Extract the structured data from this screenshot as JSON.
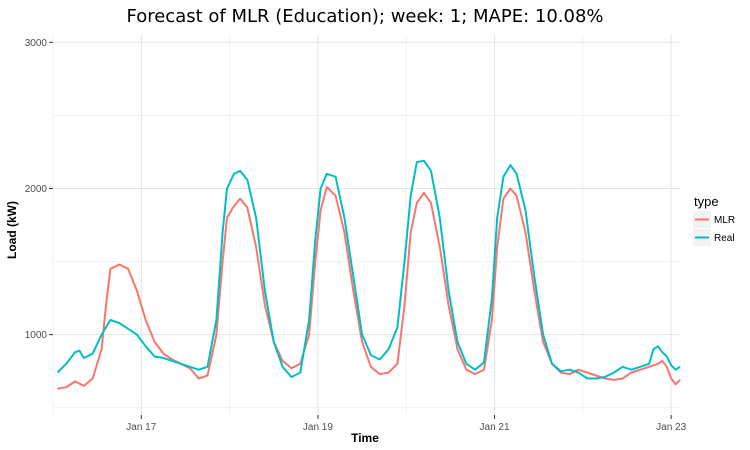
{
  "chart_data": {
    "type": "line",
    "title": "Forecast of MLR (Education); week: 1; MAPE: 10.08%",
    "xlabel": "Time",
    "ylabel": "Load (kW)",
    "x_unit": "days (January)",
    "xlim": [
      16.0,
      23.1
    ],
    "ylim": [
      450,
      3050
    ],
    "x_ticks": [
      {
        "value": 17,
        "label": "Jan 17"
      },
      {
        "value": 19,
        "label": "Jan 19"
      },
      {
        "value": 21,
        "label": "Jan 21"
      },
      {
        "value": 23,
        "label": "Jan 23"
      }
    ],
    "y_ticks": [
      {
        "value": 1000,
        "label": "1000"
      },
      {
        "value": 2000,
        "label": "2000"
      },
      {
        "value": 3000,
        "label": "3000"
      }
    ],
    "grid": true,
    "legend": {
      "title": "type",
      "position": "right"
    },
    "series": [
      {
        "name": "MLR",
        "color": "#F8766D",
        "points": [
          [
            16.05,
            630
          ],
          [
            16.15,
            640
          ],
          [
            16.25,
            680
          ],
          [
            16.35,
            650
          ],
          [
            16.45,
            700
          ],
          [
            16.55,
            900
          ],
          [
            16.6,
            1200
          ],
          [
            16.65,
            1450
          ],
          [
            16.75,
            1480
          ],
          [
            16.85,
            1450
          ],
          [
            16.95,
            1300
          ],
          [
            17.05,
            1100
          ],
          [
            17.15,
            950
          ],
          [
            17.25,
            870
          ],
          [
            17.35,
            830
          ],
          [
            17.45,
            800
          ],
          [
            17.55,
            770
          ],
          [
            17.65,
            700
          ],
          [
            17.75,
            720
          ],
          [
            17.85,
            1000
          ],
          [
            17.92,
            1500
          ],
          [
            17.97,
            1800
          ],
          [
            18.05,
            1880
          ],
          [
            18.12,
            1930
          ],
          [
            18.2,
            1870
          ],
          [
            18.3,
            1600
          ],
          [
            18.4,
            1200
          ],
          [
            18.5,
            950
          ],
          [
            18.6,
            820
          ],
          [
            18.7,
            770
          ],
          [
            18.8,
            800
          ],
          [
            18.9,
            1000
          ],
          [
            18.97,
            1500
          ],
          [
            19.03,
            1850
          ],
          [
            19.1,
            2010
          ],
          [
            19.2,
            1950
          ],
          [
            19.3,
            1700
          ],
          [
            19.4,
            1300
          ],
          [
            19.5,
            950
          ],
          [
            19.6,
            780
          ],
          [
            19.7,
            730
          ],
          [
            19.8,
            740
          ],
          [
            19.9,
            800
          ],
          [
            19.98,
            1200
          ],
          [
            20.05,
            1700
          ],
          [
            20.12,
            1900
          ],
          [
            20.2,
            1970
          ],
          [
            20.28,
            1900
          ],
          [
            20.38,
            1600
          ],
          [
            20.48,
            1200
          ],
          [
            20.58,
            900
          ],
          [
            20.68,
            760
          ],
          [
            20.78,
            730
          ],
          [
            20.88,
            760
          ],
          [
            20.97,
            1100
          ],
          [
            21.03,
            1600
          ],
          [
            21.1,
            1930
          ],
          [
            21.18,
            2000
          ],
          [
            21.25,
            1950
          ],
          [
            21.35,
            1700
          ],
          [
            21.45,
            1300
          ],
          [
            21.55,
            950
          ],
          [
            21.65,
            800
          ],
          [
            21.75,
            740
          ],
          [
            21.85,
            730
          ],
          [
            21.95,
            760
          ],
          [
            22.05,
            740
          ],
          [
            22.15,
            720
          ],
          [
            22.25,
            700
          ],
          [
            22.35,
            690
          ],
          [
            22.45,
            700
          ],
          [
            22.55,
            740
          ],
          [
            22.65,
            760
          ],
          [
            22.75,
            780
          ],
          [
            22.85,
            800
          ],
          [
            22.9,
            820
          ],
          [
            22.95,
            780
          ],
          [
            23.0,
            700
          ],
          [
            23.05,
            660
          ],
          [
            23.1,
            690
          ]
        ]
      },
      {
        "name": "Real",
        "color": "#00BFC4",
        "points": [
          [
            16.05,
            740
          ],
          [
            16.15,
            800
          ],
          [
            16.25,
            880
          ],
          [
            16.3,
            890
          ],
          [
            16.35,
            840
          ],
          [
            16.45,
            870
          ],
          [
            16.55,
            1000
          ],
          [
            16.65,
            1100
          ],
          [
            16.75,
            1080
          ],
          [
            16.85,
            1040
          ],
          [
            16.95,
            1000
          ],
          [
            17.05,
            920
          ],
          [
            17.15,
            850
          ],
          [
            17.25,
            840
          ],
          [
            17.35,
            820
          ],
          [
            17.45,
            800
          ],
          [
            17.55,
            780
          ],
          [
            17.65,
            760
          ],
          [
            17.75,
            780
          ],
          [
            17.85,
            1100
          ],
          [
            17.92,
            1700
          ],
          [
            17.97,
            2000
          ],
          [
            18.05,
            2100
          ],
          [
            18.12,
            2120
          ],
          [
            18.2,
            2060
          ],
          [
            18.3,
            1800
          ],
          [
            18.4,
            1300
          ],
          [
            18.5,
            950
          ],
          [
            18.6,
            780
          ],
          [
            18.7,
            710
          ],
          [
            18.8,
            740
          ],
          [
            18.9,
            1100
          ],
          [
            18.97,
            1650
          ],
          [
            19.03,
            2000
          ],
          [
            19.1,
            2100
          ],
          [
            19.2,
            2080
          ],
          [
            19.3,
            1800
          ],
          [
            19.4,
            1400
          ],
          [
            19.5,
            1000
          ],
          [
            19.6,
            860
          ],
          [
            19.7,
            830
          ],
          [
            19.8,
            900
          ],
          [
            19.9,
            1050
          ],
          [
            19.98,
            1500
          ],
          [
            20.05,
            1950
          ],
          [
            20.12,
            2180
          ],
          [
            20.2,
            2190
          ],
          [
            20.28,
            2120
          ],
          [
            20.38,
            1800
          ],
          [
            20.48,
            1300
          ],
          [
            20.58,
            950
          ],
          [
            20.68,
            800
          ],
          [
            20.78,
            760
          ],
          [
            20.88,
            810
          ],
          [
            20.97,
            1250
          ],
          [
            21.03,
            1800
          ],
          [
            21.1,
            2080
          ],
          [
            21.18,
            2160
          ],
          [
            21.25,
            2100
          ],
          [
            21.35,
            1850
          ],
          [
            21.45,
            1400
          ],
          [
            21.55,
            1000
          ],
          [
            21.65,
            800
          ],
          [
            21.75,
            750
          ],
          [
            21.85,
            760
          ],
          [
            21.95,
            740
          ],
          [
            22.05,
            700
          ],
          [
            22.15,
            700
          ],
          [
            22.25,
            710
          ],
          [
            22.35,
            740
          ],
          [
            22.45,
            780
          ],
          [
            22.55,
            760
          ],
          [
            22.65,
            780
          ],
          [
            22.75,
            800
          ],
          [
            22.8,
            900
          ],
          [
            22.85,
            920
          ],
          [
            22.9,
            880
          ],
          [
            22.95,
            850
          ],
          [
            23.0,
            790
          ],
          [
            23.05,
            760
          ],
          [
            23.1,
            780
          ]
        ]
      }
    ]
  }
}
